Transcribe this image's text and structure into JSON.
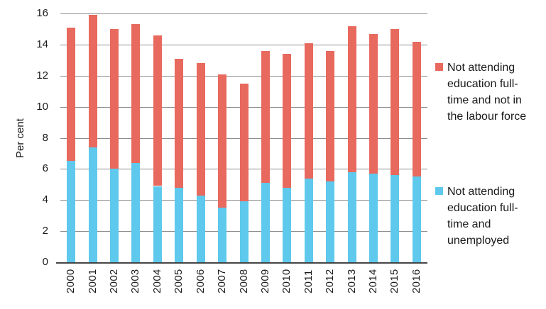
{
  "chart_data": {
    "type": "bar",
    "stacked": true,
    "title": "",
    "xlabel": "",
    "ylabel": "Per cent",
    "ylim": [
      0,
      16
    ],
    "ytick_step": 2,
    "grid": true,
    "legend_position": "right",
    "categories": [
      "2000",
      "2001",
      "2002",
      "2003",
      "2004",
      "2005",
      "2006",
      "2007",
      "2008",
      "2009",
      "2010",
      "2011",
      "2012",
      "2013",
      "2014",
      "2015",
      "2016"
    ],
    "series": [
      {
        "name": "Not attending education full-time and unemployed",
        "key": "unemployed",
        "color": "#5EC9EC",
        "values": [
          6.5,
          7.4,
          6.0,
          6.4,
          4.9,
          4.8,
          4.3,
          3.5,
          3.9,
          5.1,
          4.8,
          5.4,
          5.2,
          5.8,
          5.7,
          5.6,
          5.5
        ]
      },
      {
        "name": "Not attending education full-time and not in the labour force",
        "key": "not-in-labour-force",
        "color": "#E8695E",
        "values": [
          8.6,
          8.5,
          9.0,
          8.9,
          9.7,
          8.3,
          8.5,
          8.6,
          7.6,
          8.5,
          8.6,
          8.7,
          8.4,
          9.4,
          9.0,
          9.4,
          8.7
        ]
      }
    ],
    "totals": [
      15.1,
      15.9,
      15.0,
      15.3,
      14.6,
      13.1,
      12.8,
      12.1,
      11.5,
      13.6,
      13.4,
      14.1,
      13.6,
      15.2,
      14.7,
      15.0,
      14.2
    ],
    "colors": {
      "gridline": "#8C8C8C",
      "axis_line": "#454545",
      "text": "#1A1A1A",
      "background": "#FFFFFF"
    }
  },
  "legend": {
    "items": [
      {
        "label": "Not attending education full-time and not in the labour force",
        "color": "#E8695E"
      },
      {
        "label": "Not attending education full-time and unemployed",
        "color": "#5EC9EC"
      }
    ]
  }
}
